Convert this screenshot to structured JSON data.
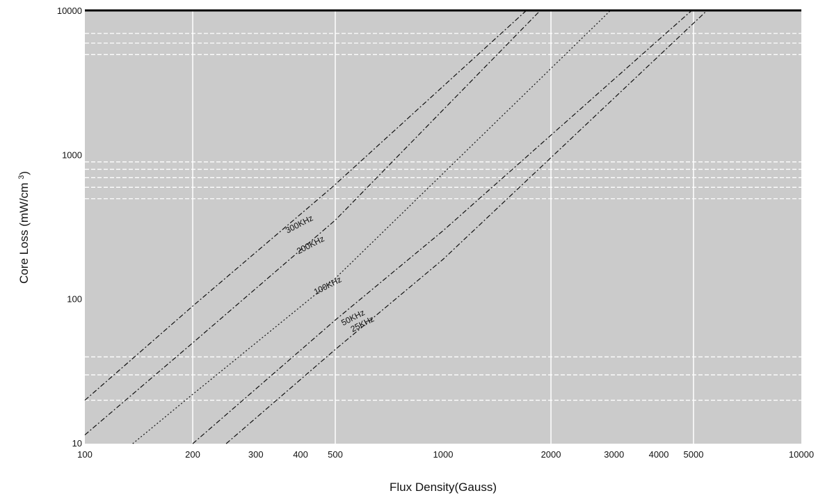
{
  "chart_data": {
    "type": "line",
    "xlabel": "Flux Density(Gauss)",
    "ylabel": "Core Loss (mW/cm 3)",
    "xscale": "log",
    "yscale": "log",
    "xlim": [
      100,
      10000
    ],
    "ylim": [
      10,
      10000
    ],
    "grid": true,
    "x_ticks": [
      {
        "value": 100,
        "label": "100"
      },
      {
        "value": 200,
        "label": "200"
      },
      {
        "value": 300,
        "label": "300"
      },
      {
        "value": 400,
        "label": "400"
      },
      {
        "value": 500,
        "label": "500"
      },
      {
        "value": 1000,
        "label": "1000"
      },
      {
        "value": 2000,
        "label": "2000"
      },
      {
        "value": 3000,
        "label": "3000"
      },
      {
        "value": 4000,
        "label": "4000"
      },
      {
        "value": 5000,
        "label": "5000"
      },
      {
        "value": 10000,
        "label": "10000"
      }
    ],
    "y_ticks": [
      {
        "value": 10,
        "label": "10"
      },
      {
        "value": 100,
        "label": "100"
      },
      {
        "value": 1000,
        "label": "1000"
      },
      {
        "value": 10000,
        "label": "10000"
      }
    ],
    "series": [
      {
        "name": "300KHz",
        "dash": "dashdot",
        "x": [
          100,
          200,
          490,
          1700
        ],
        "y": [
          20,
          90,
          600,
          10000
        ]
      },
      {
        "name": "200KHz",
        "dash": "dashdot",
        "x": [
          100,
          200,
          500,
          1860
        ],
        "y": [
          11.5,
          50,
          355,
          10000
        ]
      },
      {
        "name": "100KHz",
        "dash": "dotted",
        "x": [
          136,
          200,
          500,
          2920
        ],
        "y": [
          10,
          22,
          140,
          10000
        ]
      },
      {
        "name": "50KHz",
        "dash": "dashdot",
        "x": [
          200,
          500,
          1000,
          4920
        ],
        "y": [
          10,
          72,
          300,
          10000
        ]
      },
      {
        "name": "25KHz",
        "dash": "dashdot",
        "x": [
          248,
          500,
          1000,
          5430
        ],
        "y": [
          10,
          45,
          190,
          10000
        ]
      }
    ],
    "series_label_positions": [
      {
        "name": "300KHz",
        "x": 400,
        "y": 320
      },
      {
        "name": "200KHz",
        "x": 430,
        "y": 230
      },
      {
        "name": "100KHz",
        "x": 480,
        "y": 120
      },
      {
        "name": "50KHz",
        "x": 565,
        "y": 72
      },
      {
        "name": "25KHz",
        "x": 600,
        "y": 65
      }
    ],
    "colors": {
      "plot_background": "#cbcbcb",
      "line": "#111111",
      "grid": "#ffffff"
    }
  }
}
